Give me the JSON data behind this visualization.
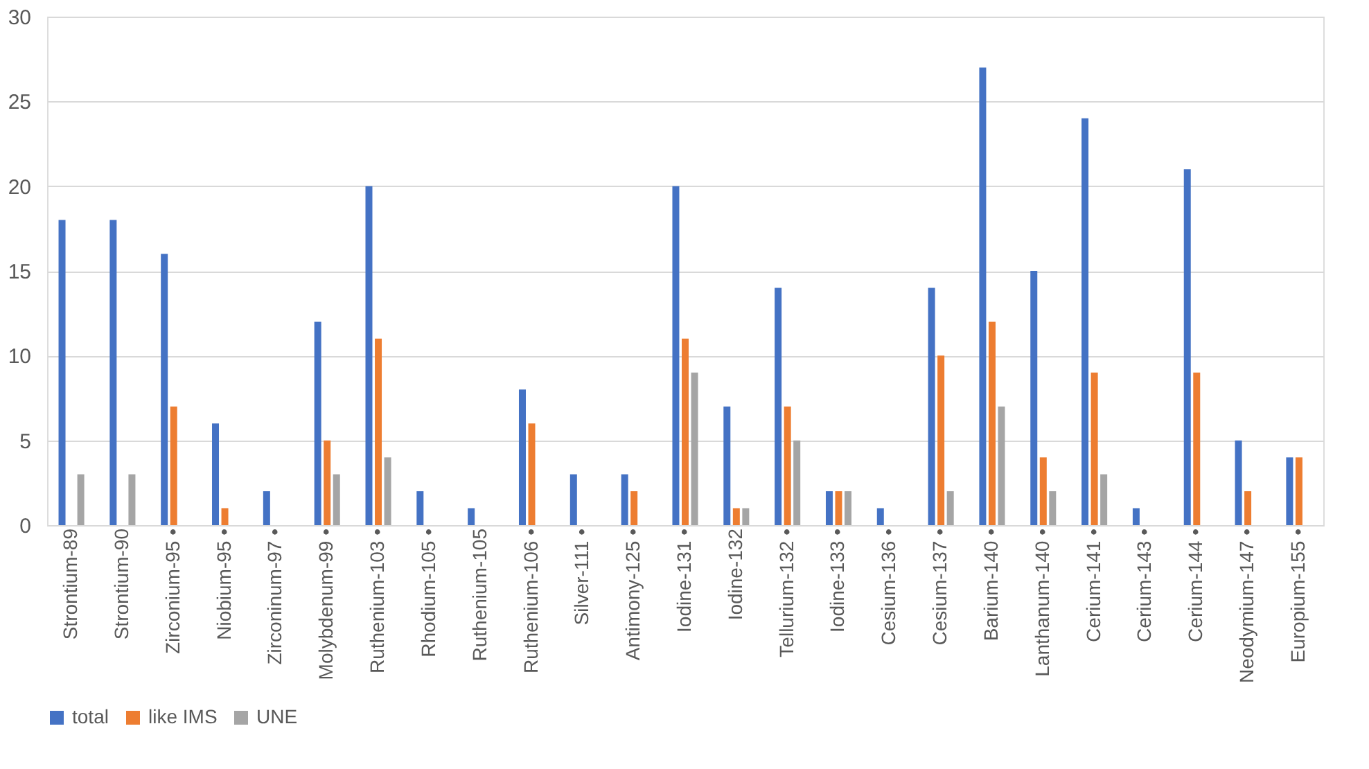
{
  "chart_data": {
    "type": "bar",
    "categories": [
      "Strontium-89",
      "Strontium-90",
      "Zirconium-95 •",
      "Niobium-95 •",
      "Zirconinum-97 •",
      "Molybdenum-99 •",
      "Ruthenium-103 •",
      "Rhodium-105 •",
      "Ruthenium-105",
      "Ruthenium-106 •",
      "Silver-111 •",
      "Antimony-125 •",
      "Iodine-131 •",
      "Iodine-132",
      "Tellurium-132 •",
      "Iodine-133 •",
      "Cesium-136 •",
      "Cesium-137 •",
      "Barium-140 •",
      "Lanthanum-140 •",
      "Cerium-141 •",
      "Cerium-143 •",
      "Cerium-144 •",
      "Neodymium-147 •",
      "Europium-155 •"
    ],
    "series": [
      {
        "name": "total",
        "color": "#4472c4",
        "values": [
          18,
          18,
          16,
          6,
          2,
          12,
          20,
          2,
          1,
          8,
          3,
          3,
          20,
          7,
          14,
          2,
          1,
          14,
          27,
          15,
          24,
          1,
          21,
          5,
          4
        ]
      },
      {
        "name": "like IMS",
        "color": "#ed7d31",
        "values": [
          null,
          null,
          7,
          1,
          null,
          5,
          11,
          null,
          null,
          6,
          null,
          2,
          11,
          1,
          7,
          2,
          null,
          10,
          12,
          4,
          9,
          null,
          9,
          2,
          4
        ]
      },
      {
        "name": "UNE",
        "color": "#a5a5a5",
        "values": [
          3,
          3,
          null,
          null,
          null,
          3,
          4,
          null,
          null,
          null,
          null,
          null,
          9,
          1,
          5,
          2,
          null,
          2,
          7,
          2,
          3,
          null,
          null,
          null,
          null
        ]
      }
    ],
    "ylim": [
      0,
      30
    ],
    "yticks": [
      0,
      5,
      10,
      15,
      20,
      25,
      30
    ],
    "grid": "y",
    "legend": "bottom"
  }
}
